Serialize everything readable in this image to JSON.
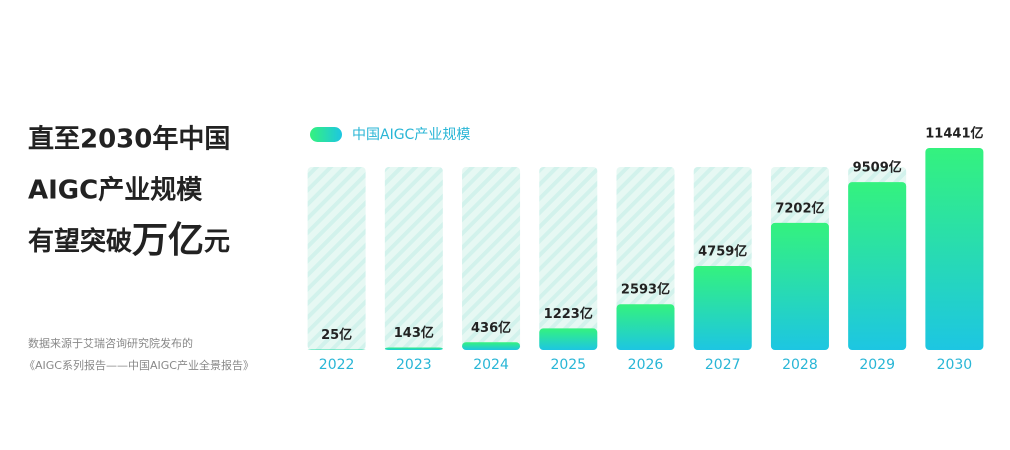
{
  "chart_data": {
    "type": "bar",
    "title_lines": [
      "直至2030年中国",
      "AIGC产业规模"
    ],
    "title_last_line": [
      "有望突破",
      "万亿",
      "元"
    ],
    "source_lines": [
      "数据来源于艾瑞咨询研究院发布的",
      "《AIGC系列报告——中国AIGC产业全景报告》"
    ],
    "series": [
      {
        "name": "中国AIGC产业规模",
        "color": [
          "#34f27e",
          "#1dc6e2"
        ],
        "values": [
          25,
          143,
          436,
          1223,
          2593,
          4759,
          7202,
          9509,
          11441
        ],
        "value_labels": [
          "25亿",
          "143亿",
          "436亿",
          "1223亿",
          "2593亿",
          "4759亿",
          "7202亿",
          "9509亿",
          "11441亿"
        ]
      }
    ],
    "categories": [
      "2022",
      "2023",
      "2024",
      "2025",
      "2026",
      "2027",
      "2028",
      "2029",
      "2030"
    ]
  }
}
